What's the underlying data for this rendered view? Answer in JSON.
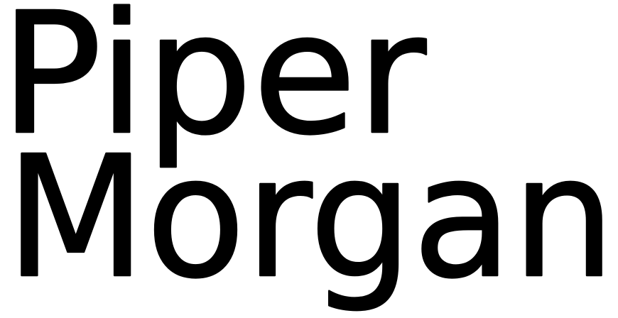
{
  "logo": {
    "line1": "Piper",
    "line2": "Morgan",
    "color": "#000000",
    "background": "#ffffff"
  }
}
